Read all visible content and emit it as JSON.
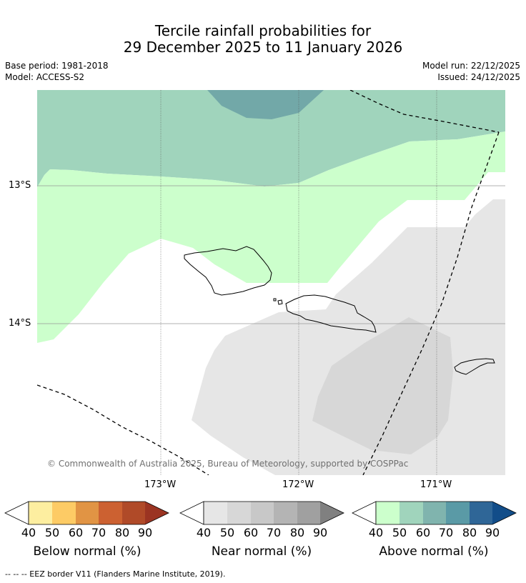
{
  "title_line1": "Tercile rainfall probabilities for",
  "title_line2": "29 December 2025 to 11 January 2026",
  "base_period": "Base period: 1981-2018",
  "model": "Model: ACCESS-S2",
  "model_run": "Model run: 22/12/2025",
  "issued": "Issued: 24/12/2025",
  "lat_labels": [
    "13°S",
    "14°S"
  ],
  "lon_labels": [
    "173°W",
    "172°W",
    "171°W"
  ],
  "copyright": "© Commonwealth of Australia 2025, Bureau of Meteorology, supported by COSPPac",
  "footnote": "--  --  -- EEZ border V11 (Flanders Marine Institute, 2019).",
  "colorbars": [
    {
      "label": "Below normal (%)",
      "ticks": [
        "40",
        "50",
        "60",
        "70",
        "80",
        "90"
      ],
      "colors": [
        "#fdeea0",
        "#fdcb65",
        "#e19444",
        "#cc6131",
        "#b04a28",
        "#9b3422"
      ]
    },
    {
      "label": "Near normal (%)",
      "ticks": [
        "40",
        "50",
        "60",
        "70",
        "80",
        "90"
      ],
      "colors": [
        "#e6e6e6",
        "#d7d7d7",
        "#c8c8c8",
        "#b4b4b4",
        "#a0a0a0",
        "#808080"
      ]
    },
    {
      "label": "Above normal (%)",
      "ticks": [
        "40",
        "50",
        "60",
        "70",
        "80",
        "90"
      ],
      "colors": [
        "#ccffcc",
        "#a0d4bc",
        "#80b4ae",
        "#5a9aa6",
        "#2f6697",
        "#124d89"
      ]
    }
  ]
}
